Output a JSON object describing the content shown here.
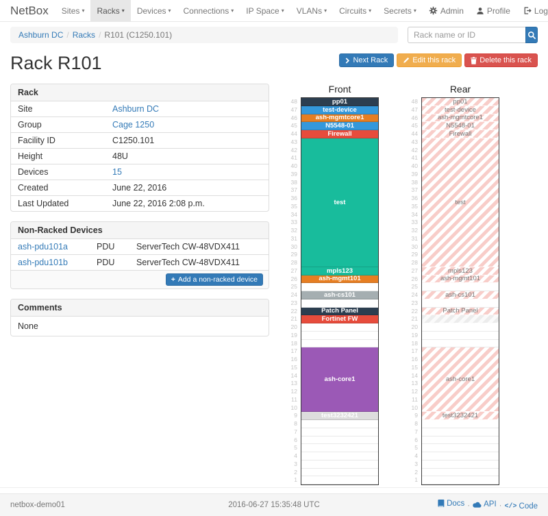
{
  "navbar": {
    "brand": "NetBox",
    "items": [
      {
        "label": "Sites",
        "active": false
      },
      {
        "label": "Racks",
        "active": true
      },
      {
        "label": "Devices",
        "active": false
      },
      {
        "label": "Connections",
        "active": false
      },
      {
        "label": "IP Space",
        "active": false
      },
      {
        "label": "VLANs",
        "active": false
      },
      {
        "label": "Circuits",
        "active": false
      },
      {
        "label": "Secrets",
        "active": false
      }
    ],
    "right": [
      {
        "label": "Admin"
      },
      {
        "label": "Profile"
      },
      {
        "label": "Log out"
      }
    ]
  },
  "breadcrumb": {
    "items": [
      {
        "label": "Ashburn DC",
        "link": true
      },
      {
        "label": "Racks",
        "link": true
      },
      {
        "label": "R101 (C1250.101)",
        "link": false
      }
    ]
  },
  "search": {
    "placeholder": "Rack name or ID"
  },
  "actions": {
    "next": "Next Rack",
    "edit": "Edit this rack",
    "delete": "Delete this rack"
  },
  "page_title": "Rack R101",
  "panels": {
    "rack": {
      "title": "Rack",
      "rows": [
        {
          "label": "Site",
          "value": "Ashburn DC",
          "link": true
        },
        {
          "label": "Group",
          "value": "Cage 1250",
          "link": true
        },
        {
          "label": "Facility ID",
          "value": "C1250.101",
          "link": false
        },
        {
          "label": "Height",
          "value": "48U",
          "link": false
        },
        {
          "label": "Devices",
          "value": "15",
          "link": true
        },
        {
          "label": "Created",
          "value": "June 22, 2016",
          "link": false
        },
        {
          "label": "Last Updated",
          "value": "June 22, 2016 2:08 p.m.",
          "link": false
        }
      ]
    },
    "nonracked": {
      "title": "Non-Racked Devices",
      "rows": [
        {
          "name": "ash-pdu101a",
          "role": "PDU",
          "type": "ServerTech CW-48VDX411"
        },
        {
          "name": "ash-pdu101b",
          "role": "PDU",
          "type": "ServerTech CW-48VDX411"
        }
      ],
      "add_button": "Add a non-racked device"
    },
    "comments": {
      "title": "Comments",
      "body": "None"
    }
  },
  "elevations": {
    "front_title": "Front",
    "rear_title": "Rear",
    "units_total": 48,
    "units": [
      {
        "u": 48,
        "span": 1,
        "label": "pp01",
        "color": "#2c3e50"
      },
      {
        "u": 47,
        "span": 1,
        "label": "test-device",
        "color": "#3498db"
      },
      {
        "u": 46,
        "span": 1,
        "label": "ash-mgmtcore1",
        "color": "#e67e22"
      },
      {
        "u": 45,
        "span": 1,
        "label": "N5548-01",
        "color": "#3498db"
      },
      {
        "u": 44,
        "span": 1,
        "label": "Firewall",
        "color": "#e74c3c"
      },
      {
        "u": 43,
        "span": 16,
        "label": "test",
        "color": "#18bc9c"
      },
      {
        "u": 27,
        "span": 1,
        "label": "mpls123",
        "color": "#18bc9c"
      },
      {
        "u": 26,
        "span": 1,
        "label": "ash-mgmt101",
        "color": "#e67e22"
      },
      {
        "u": 24,
        "span": 1,
        "label": "ash-cs101",
        "color": "#a5aeb1"
      },
      {
        "u": 22,
        "span": 1,
        "label": "Patch Panel",
        "color": "#2c3e50"
      },
      {
        "u": 21,
        "span": 1,
        "label": "Fortinet FW",
        "color": "#e74c3c",
        "rear": "ghost"
      },
      {
        "u": 17,
        "span": 8,
        "label": "ash-core1",
        "color": "#9b59b6"
      },
      {
        "u": 9,
        "span": 1,
        "label": "test3232421",
        "color": "#dddddd",
        "text": "#ffffff"
      }
    ]
  },
  "footer": {
    "hostname": "netbox-demo01",
    "timestamp": "2016-06-27 15:35:48 UTC",
    "links": [
      {
        "label": "Docs"
      },
      {
        "label": "API"
      },
      {
        "label": "Code"
      }
    ]
  },
  "colors": {
    "primary": "#337ab7",
    "warning": "#f0ad4e",
    "danger": "#d9534f",
    "rear_stripe": "#f8cdc9"
  }
}
